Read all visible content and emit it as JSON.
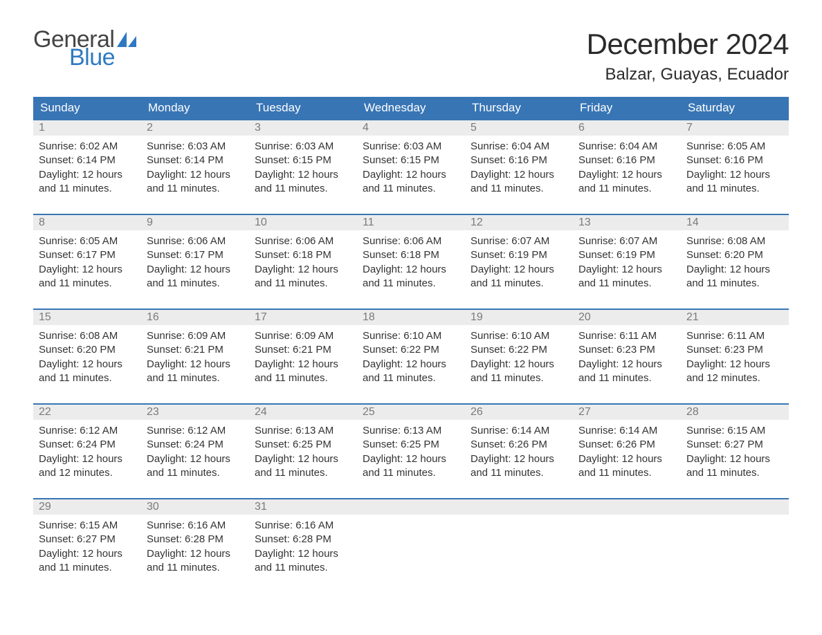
{
  "logo": {
    "text1": "General",
    "text2": "Blue",
    "color_gray": "#444444",
    "color_blue": "#2f79c2"
  },
  "title": "December 2024",
  "location": "Balzar, Guayas, Ecuador",
  "colors": {
    "header_bg": "#3875b5",
    "header_text": "#ffffff",
    "daynum_bg": "#ececec",
    "daynum_text": "#7a7a7a",
    "body_text": "#333333",
    "week_border": "#3875b5",
    "page_bg": "#ffffff"
  },
  "fonts": {
    "title_size_pt": 32,
    "location_size_pt": 18,
    "dow_size_pt": 13,
    "daynum_size_pt": 12,
    "body_size_pt": 11
  },
  "days_of_week": [
    "Sunday",
    "Monday",
    "Tuesday",
    "Wednesday",
    "Thursday",
    "Friday",
    "Saturday"
  ],
  "weeks": [
    [
      {
        "n": "1",
        "sunrise": "Sunrise: 6:02 AM",
        "sunset": "Sunset: 6:14 PM",
        "d1": "Daylight: 12 hours",
        "d2": "and 11 minutes."
      },
      {
        "n": "2",
        "sunrise": "Sunrise: 6:03 AM",
        "sunset": "Sunset: 6:14 PM",
        "d1": "Daylight: 12 hours",
        "d2": "and 11 minutes."
      },
      {
        "n": "3",
        "sunrise": "Sunrise: 6:03 AM",
        "sunset": "Sunset: 6:15 PM",
        "d1": "Daylight: 12 hours",
        "d2": "and 11 minutes."
      },
      {
        "n": "4",
        "sunrise": "Sunrise: 6:03 AM",
        "sunset": "Sunset: 6:15 PM",
        "d1": "Daylight: 12 hours",
        "d2": "and 11 minutes."
      },
      {
        "n": "5",
        "sunrise": "Sunrise: 6:04 AM",
        "sunset": "Sunset: 6:16 PM",
        "d1": "Daylight: 12 hours",
        "d2": "and 11 minutes."
      },
      {
        "n": "6",
        "sunrise": "Sunrise: 6:04 AM",
        "sunset": "Sunset: 6:16 PM",
        "d1": "Daylight: 12 hours",
        "d2": "and 11 minutes."
      },
      {
        "n": "7",
        "sunrise": "Sunrise: 6:05 AM",
        "sunset": "Sunset: 6:16 PM",
        "d1": "Daylight: 12 hours",
        "d2": "and 11 minutes."
      }
    ],
    [
      {
        "n": "8",
        "sunrise": "Sunrise: 6:05 AM",
        "sunset": "Sunset: 6:17 PM",
        "d1": "Daylight: 12 hours",
        "d2": "and 11 minutes."
      },
      {
        "n": "9",
        "sunrise": "Sunrise: 6:06 AM",
        "sunset": "Sunset: 6:17 PM",
        "d1": "Daylight: 12 hours",
        "d2": "and 11 minutes."
      },
      {
        "n": "10",
        "sunrise": "Sunrise: 6:06 AM",
        "sunset": "Sunset: 6:18 PM",
        "d1": "Daylight: 12 hours",
        "d2": "and 11 minutes."
      },
      {
        "n": "11",
        "sunrise": "Sunrise: 6:06 AM",
        "sunset": "Sunset: 6:18 PM",
        "d1": "Daylight: 12 hours",
        "d2": "and 11 minutes."
      },
      {
        "n": "12",
        "sunrise": "Sunrise: 6:07 AM",
        "sunset": "Sunset: 6:19 PM",
        "d1": "Daylight: 12 hours",
        "d2": "and 11 minutes."
      },
      {
        "n": "13",
        "sunrise": "Sunrise: 6:07 AM",
        "sunset": "Sunset: 6:19 PM",
        "d1": "Daylight: 12 hours",
        "d2": "and 11 minutes."
      },
      {
        "n": "14",
        "sunrise": "Sunrise: 6:08 AM",
        "sunset": "Sunset: 6:20 PM",
        "d1": "Daylight: 12 hours",
        "d2": "and 11 minutes."
      }
    ],
    [
      {
        "n": "15",
        "sunrise": "Sunrise: 6:08 AM",
        "sunset": "Sunset: 6:20 PM",
        "d1": "Daylight: 12 hours",
        "d2": "and 11 minutes."
      },
      {
        "n": "16",
        "sunrise": "Sunrise: 6:09 AM",
        "sunset": "Sunset: 6:21 PM",
        "d1": "Daylight: 12 hours",
        "d2": "and 11 minutes."
      },
      {
        "n": "17",
        "sunrise": "Sunrise: 6:09 AM",
        "sunset": "Sunset: 6:21 PM",
        "d1": "Daylight: 12 hours",
        "d2": "and 11 minutes."
      },
      {
        "n": "18",
        "sunrise": "Sunrise: 6:10 AM",
        "sunset": "Sunset: 6:22 PM",
        "d1": "Daylight: 12 hours",
        "d2": "and 11 minutes."
      },
      {
        "n": "19",
        "sunrise": "Sunrise: 6:10 AM",
        "sunset": "Sunset: 6:22 PM",
        "d1": "Daylight: 12 hours",
        "d2": "and 11 minutes."
      },
      {
        "n": "20",
        "sunrise": "Sunrise: 6:11 AM",
        "sunset": "Sunset: 6:23 PM",
        "d1": "Daylight: 12 hours",
        "d2": "and 11 minutes."
      },
      {
        "n": "21",
        "sunrise": "Sunrise: 6:11 AM",
        "sunset": "Sunset: 6:23 PM",
        "d1": "Daylight: 12 hours",
        "d2": "and 12 minutes."
      }
    ],
    [
      {
        "n": "22",
        "sunrise": "Sunrise: 6:12 AM",
        "sunset": "Sunset: 6:24 PM",
        "d1": "Daylight: 12 hours",
        "d2": "and 12 minutes."
      },
      {
        "n": "23",
        "sunrise": "Sunrise: 6:12 AM",
        "sunset": "Sunset: 6:24 PM",
        "d1": "Daylight: 12 hours",
        "d2": "and 11 minutes."
      },
      {
        "n": "24",
        "sunrise": "Sunrise: 6:13 AM",
        "sunset": "Sunset: 6:25 PM",
        "d1": "Daylight: 12 hours",
        "d2": "and 11 minutes."
      },
      {
        "n": "25",
        "sunrise": "Sunrise: 6:13 AM",
        "sunset": "Sunset: 6:25 PM",
        "d1": "Daylight: 12 hours",
        "d2": "and 11 minutes."
      },
      {
        "n": "26",
        "sunrise": "Sunrise: 6:14 AM",
        "sunset": "Sunset: 6:26 PM",
        "d1": "Daylight: 12 hours",
        "d2": "and 11 minutes."
      },
      {
        "n": "27",
        "sunrise": "Sunrise: 6:14 AM",
        "sunset": "Sunset: 6:26 PM",
        "d1": "Daylight: 12 hours",
        "d2": "and 11 minutes."
      },
      {
        "n": "28",
        "sunrise": "Sunrise: 6:15 AM",
        "sunset": "Sunset: 6:27 PM",
        "d1": "Daylight: 12 hours",
        "d2": "and 11 minutes."
      }
    ],
    [
      {
        "n": "29",
        "sunrise": "Sunrise: 6:15 AM",
        "sunset": "Sunset: 6:27 PM",
        "d1": "Daylight: 12 hours",
        "d2": "and 11 minutes."
      },
      {
        "n": "30",
        "sunrise": "Sunrise: 6:16 AM",
        "sunset": "Sunset: 6:28 PM",
        "d1": "Daylight: 12 hours",
        "d2": "and 11 minutes."
      },
      {
        "n": "31",
        "sunrise": "Sunrise: 6:16 AM",
        "sunset": "Sunset: 6:28 PM",
        "d1": "Daylight: 12 hours",
        "d2": "and 11 minutes."
      },
      null,
      null,
      null,
      null
    ]
  ]
}
